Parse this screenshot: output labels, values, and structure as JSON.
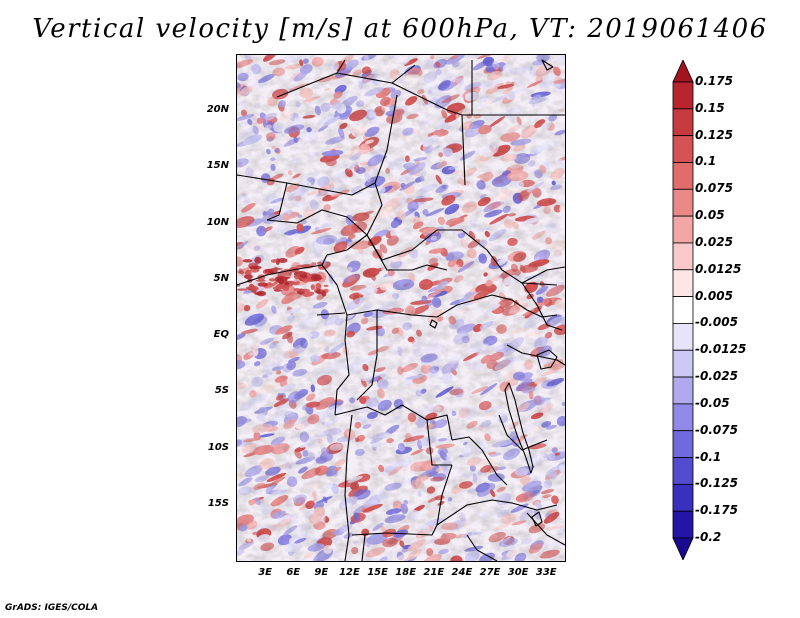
{
  "title": "Vertical velocity [m/s] at 600hPa, VT: 2019061406",
  "credit": "GrADS: IGES/COLA",
  "map": {
    "lat_labels": [
      "20N",
      "15N",
      "10N",
      "5N",
      "EQ",
      "5S",
      "10S",
      "15S"
    ],
    "lat_values": [
      20,
      15,
      10,
      5,
      0,
      -5,
      -10,
      -15
    ],
    "lon_labels": [
      "3E",
      "6E",
      "9E",
      "12E",
      "15E",
      "18E",
      "21E",
      "24E",
      "27E",
      "30E",
      "33E"
    ],
    "lon_values": [
      3,
      6,
      9,
      12,
      15,
      18,
      21,
      24,
      27,
      30,
      33
    ],
    "lon_range": [
      0,
      35
    ],
    "lat_range": [
      -20,
      25
    ]
  },
  "colorbar": {
    "labels": [
      "0.175",
      "0.15",
      "0.125",
      "0.1",
      "0.075",
      "0.05",
      "0.025",
      "0.0125",
      "0.005",
      "-0.005",
      "-0.0125",
      "-0.025",
      "-0.05",
      "-0.075",
      "-0.1",
      "-0.125",
      "-0.175",
      "-0.2"
    ],
    "colors": [
      "#a31421",
      "#b8252e",
      "#c73a3f",
      "#d55354",
      "#e06c6b",
      "#ea8888",
      "#f2a7a6",
      "#f8c9c8",
      "#fce6e6",
      "#ffffff",
      "#e7e4fa",
      "#cdc8f4",
      "#b0a9ee",
      "#9189e6",
      "#706adc",
      "#534ccf",
      "#3a30c0",
      "#2414a8",
      "#1a0a90"
    ]
  }
}
